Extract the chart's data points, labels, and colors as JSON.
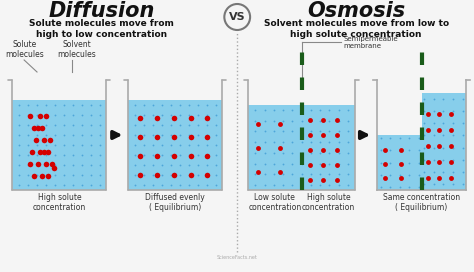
{
  "title_left": "Diffusion",
  "title_right": "Osmosis",
  "vs_text": "VS",
  "subtitle_left": "Solute molecules move from\nhigh to low concentration",
  "subtitle_right": "Solvent molecules move from low to\nhigh solute concentration",
  "bg_color": "#f5f5f5",
  "water_color": "#87ceeb",
  "dot_color_small": "#4da6d9",
  "dot_color_large": "#d40000",
  "beaker_edge": "#aaaaaa",
  "membrane_color": "#1a5c1a",
  "label_color": "#333333",
  "divider_color": "#aaaaaa",
  "arrow_color": "#111111",
  "watermark": "ScienceFacts.net",
  "title_fontsize": 15,
  "subtitle_fontsize": 6.5,
  "label_fontsize": 5.5
}
